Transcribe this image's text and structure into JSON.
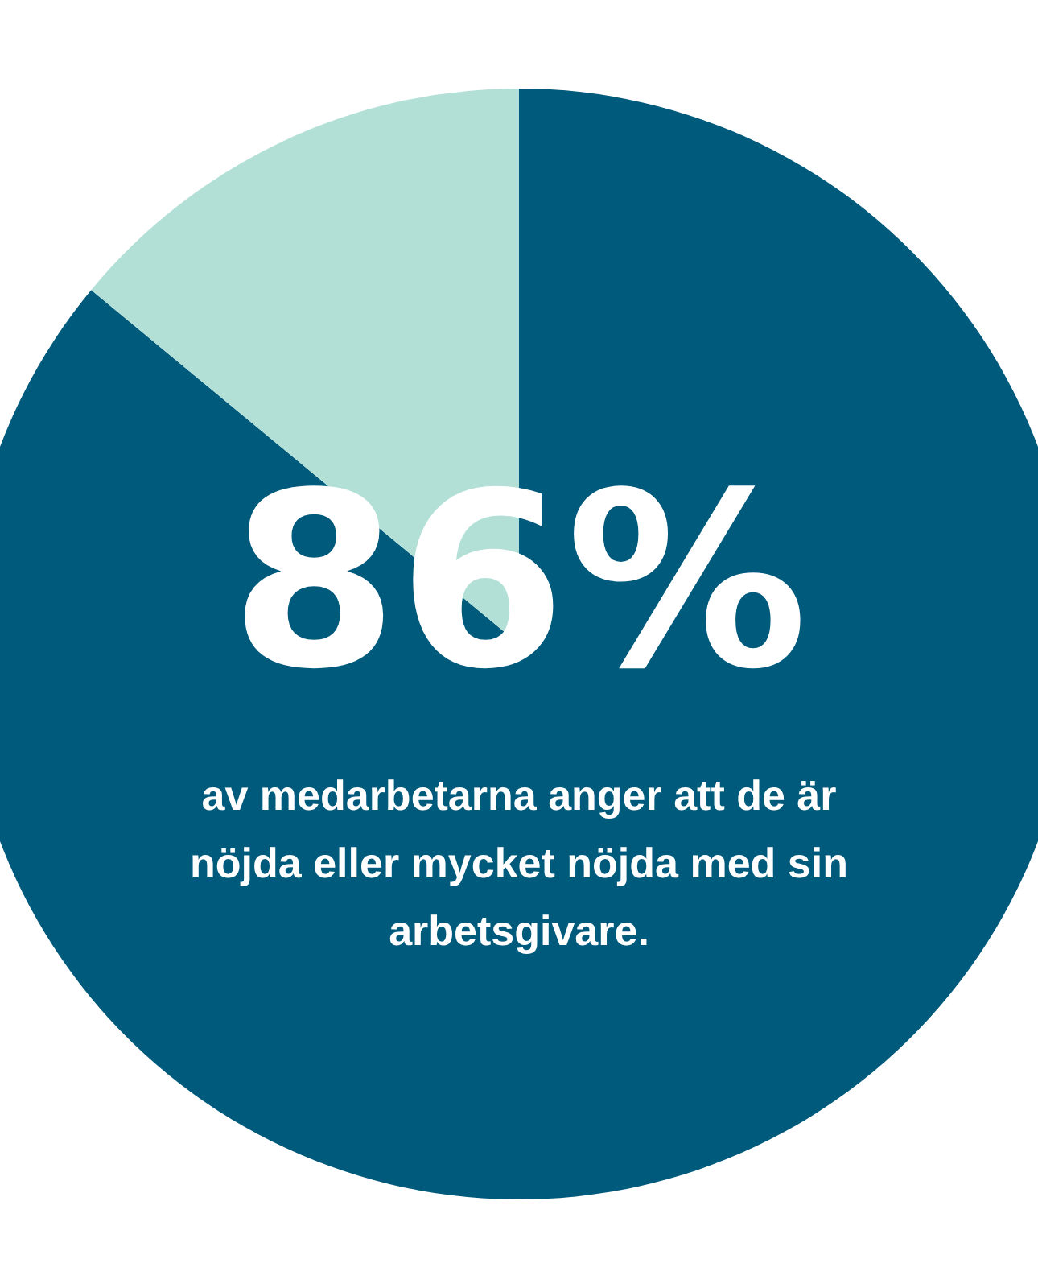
{
  "chart_data": {
    "type": "pie",
    "categories": [
      null,
      null
    ],
    "values": [
      86,
      14
    ],
    "colors": [
      "#005a7c",
      "#b2e0d7"
    ],
    "value_labels": [
      "86%",
      null
    ],
    "annotations": [
      "av medarbetarna anger att de är nöjda eller mycket nöjda med sin arbetsgivare."
    ]
  }
}
